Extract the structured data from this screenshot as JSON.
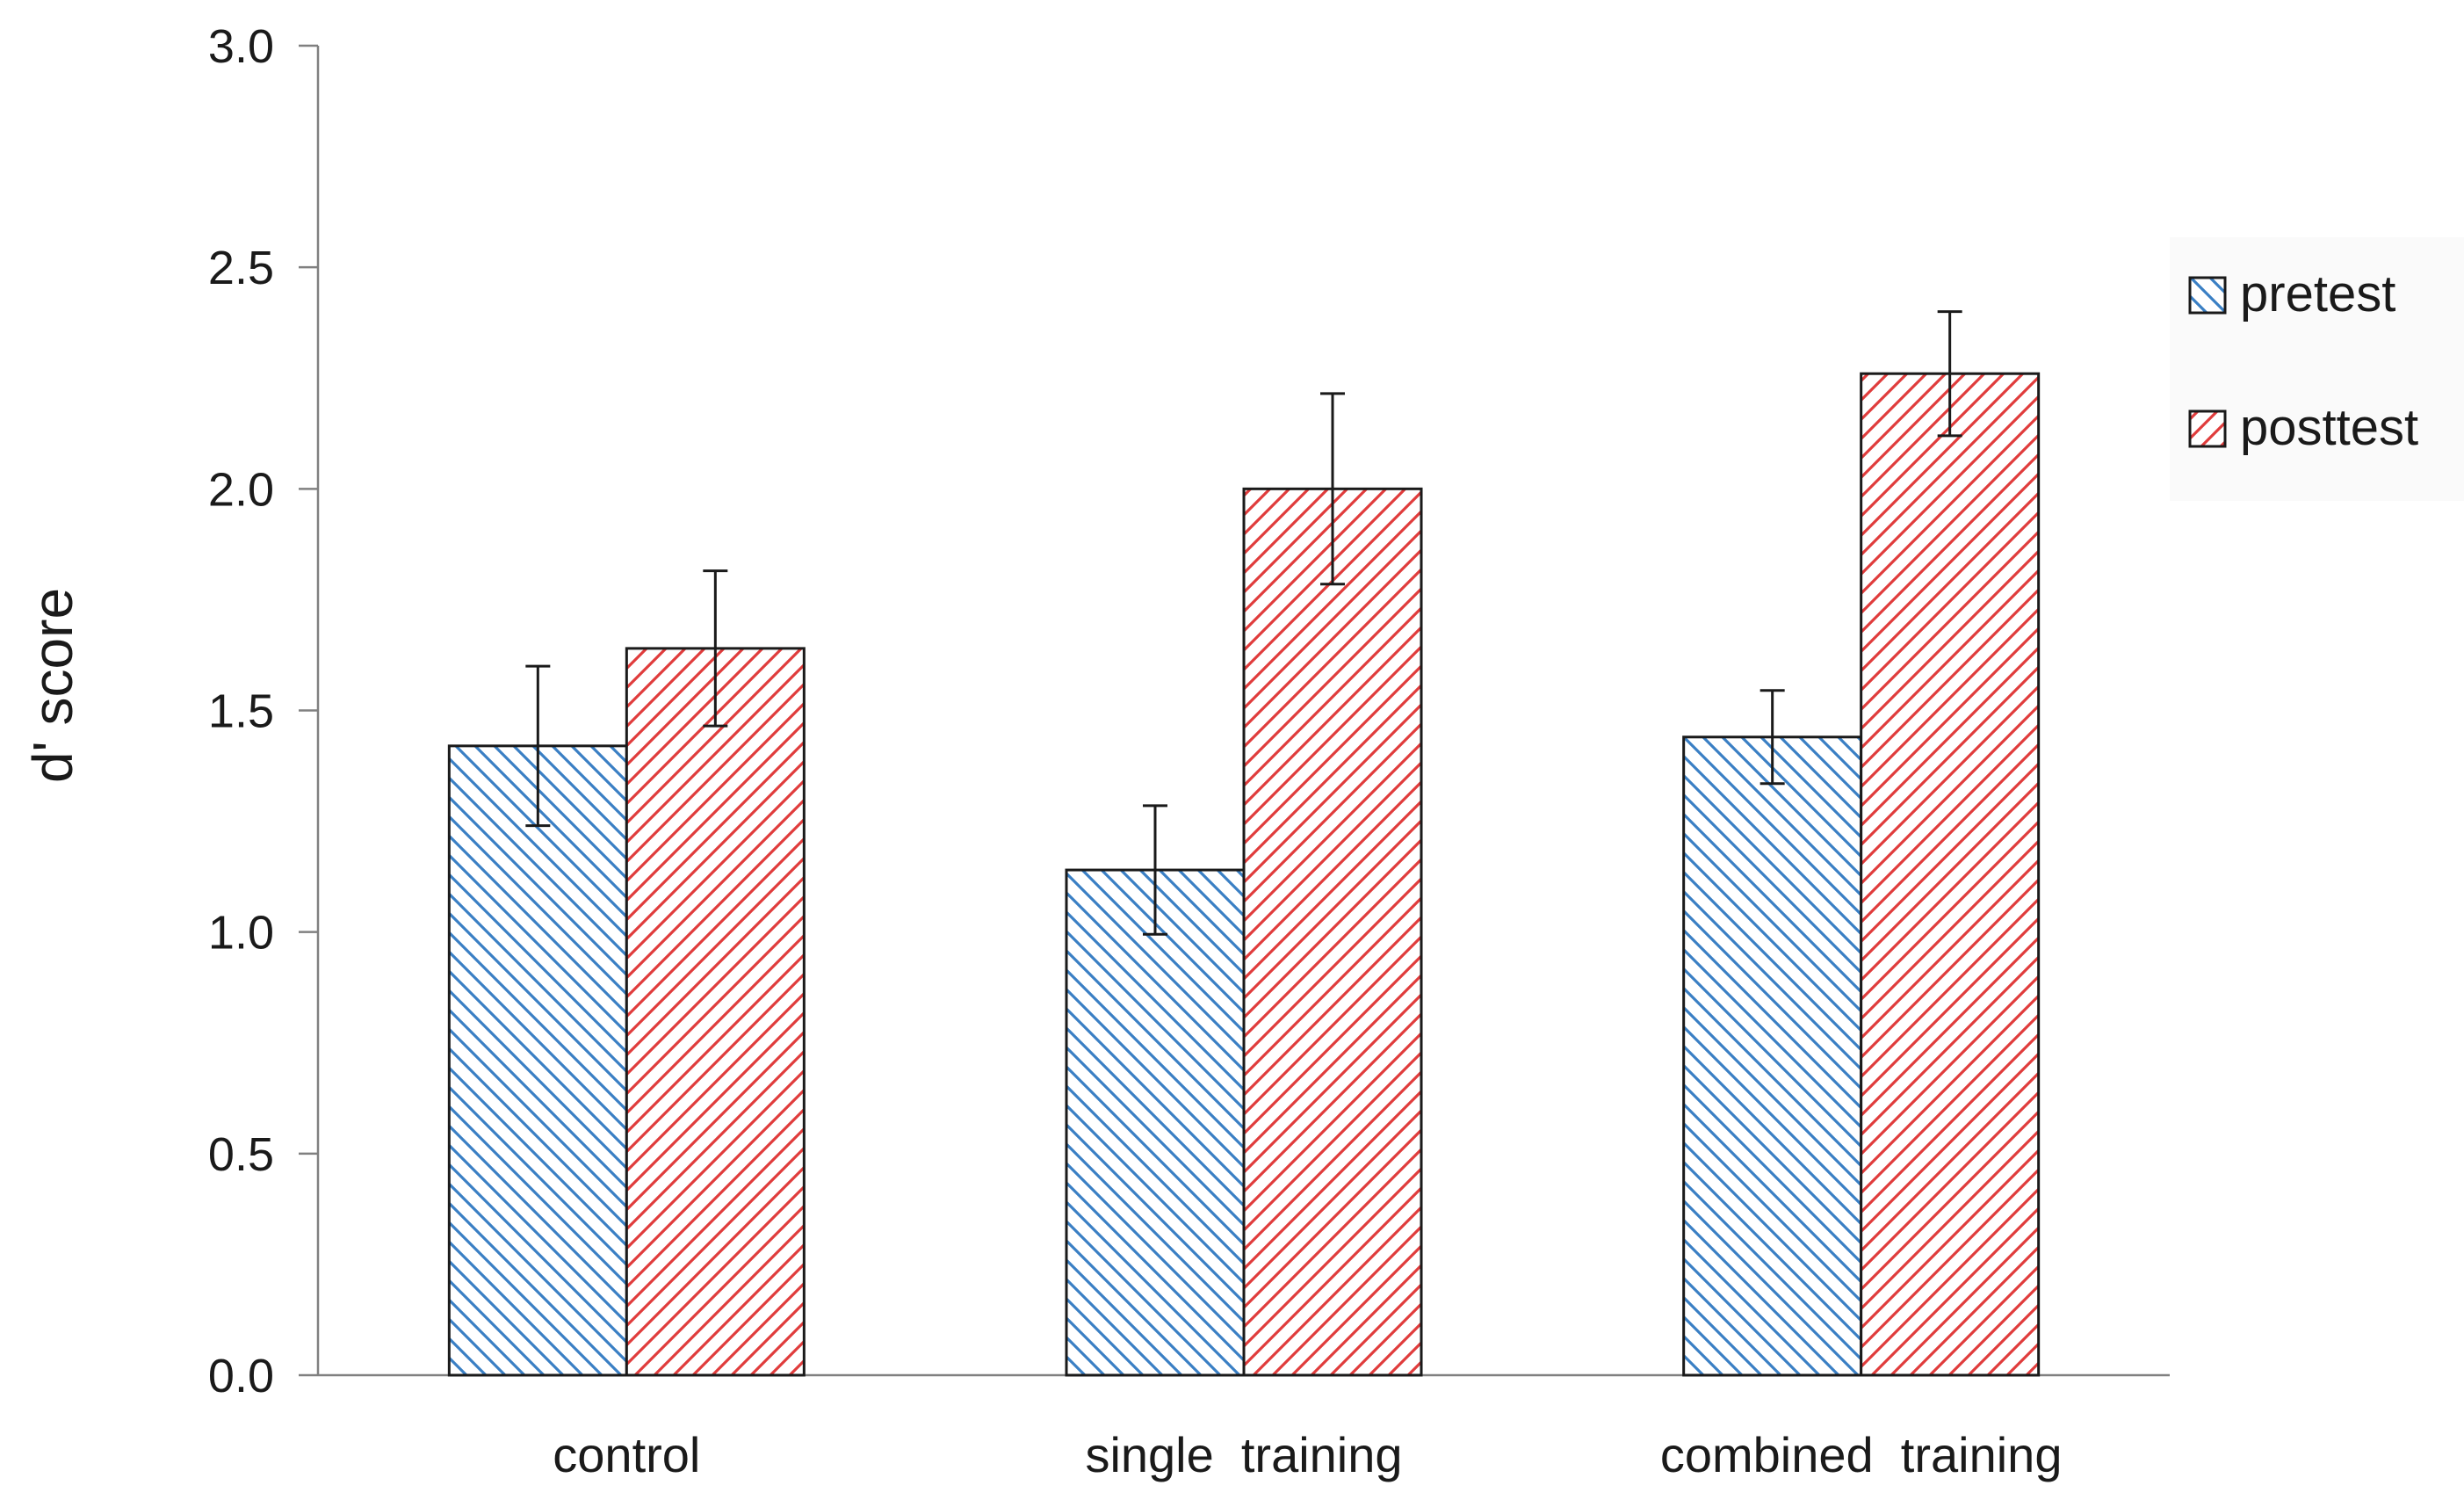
{
  "chart_data": {
    "type": "bar",
    "title": "",
    "xlabel": "",
    "ylabel": "d' score",
    "ylim": [
      0,
      3.0
    ],
    "yticks": [
      0.0,
      0.5,
      1.0,
      1.5,
      2.0,
      2.5,
      3.0
    ],
    "ytick_labels": [
      "0.0",
      "0.5",
      "1.0",
      "1.5",
      "2.0",
      "2.5",
      "3.0"
    ],
    "grid": false,
    "legend_position": "right",
    "categories": [
      "control",
      "single  training",
      "combined  training"
    ],
    "series": [
      {
        "name": "pretest",
        "color": "#3a7fc4",
        "pattern": "back-diagonal-hatch",
        "values": [
          1.42,
          1.14,
          1.44
        ],
        "errors": [
          0.18,
          0.145,
          0.105
        ]
      },
      {
        "name": "posttest",
        "color": "#e03c3c",
        "pattern": "forward-diagonal-hatch",
        "values": [
          1.64,
          2.0,
          2.26
        ],
        "errors": [
          0.175,
          0.215,
          0.14
        ]
      }
    ]
  }
}
